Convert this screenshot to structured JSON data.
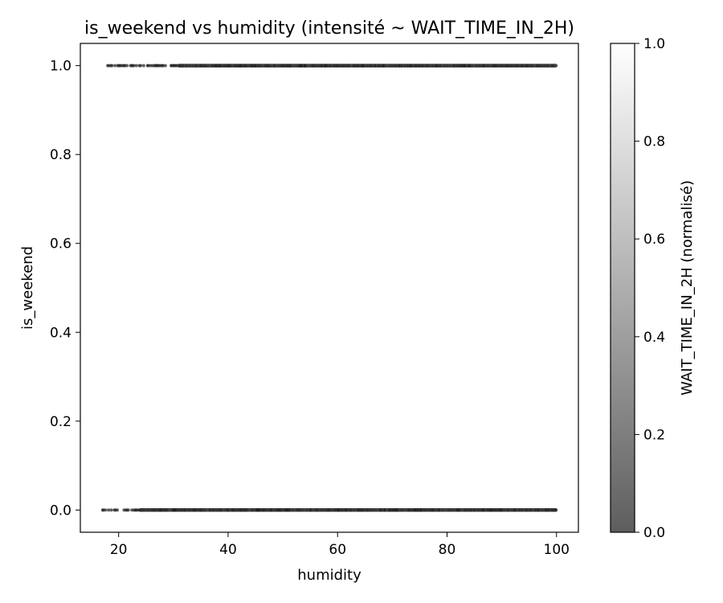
{
  "chart_data": {
    "type": "scatter",
    "title": "is_weekend vs humidity (intensité ~ WAIT_TIME_IN_2H)",
    "xlabel": "humidity",
    "ylabel": "is_weekend",
    "xlim": [
      13,
      104
    ],
    "ylim": [
      -0.05,
      1.05
    ],
    "xticks": [
      20,
      40,
      60,
      80,
      100
    ],
    "yticks": [
      0.0,
      0.2,
      0.4,
      0.6,
      0.8,
      1.0
    ],
    "xtick_labels": [
      "20",
      "40",
      "60",
      "80",
      "100"
    ],
    "ytick_labels": [
      "0.0",
      "0.2",
      "0.4",
      "0.6",
      "0.8",
      "1.0"
    ],
    "grid": false,
    "series": [
      {
        "y": 0.0,
        "x_range": [
          17,
          100
        ],
        "dense_from": 24
      },
      {
        "y": 1.0,
        "x_range": [
          18,
          100
        ],
        "dense_from": 31
      }
    ],
    "colorbar": {
      "label": "WAIT_TIME_IN_2H (normalisé)",
      "range": [
        0.0,
        1.0
      ],
      "ticks": [
        0.0,
        0.2,
        0.4,
        0.6,
        0.8,
        1.0
      ],
      "tick_labels": [
        "0.0",
        "0.2",
        "0.4",
        "0.6",
        "0.8",
        "1.0"
      ],
      "cmap": "Greys_r",
      "low_color": "#5e5e5e",
      "high_color": "#ffffff"
    },
    "point_color": "#2a2a2a"
  }
}
